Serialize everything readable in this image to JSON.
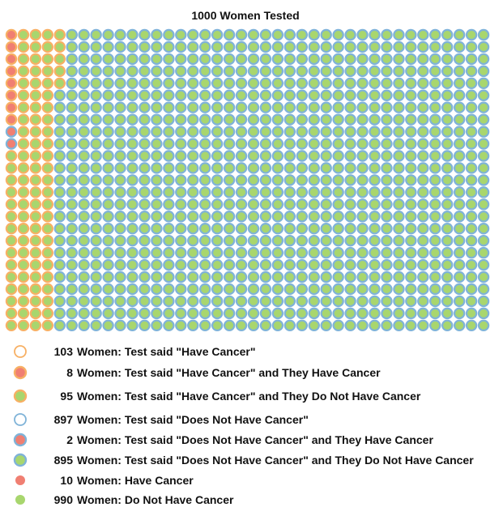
{
  "title": "1000 Women Tested",
  "chart_data": {
    "type": "pictograph",
    "title": "1000 Women Tested",
    "total": 1000,
    "grid": {
      "rows": 25,
      "cols": 40,
      "fill_order": "column-major"
    },
    "groups": [
      {
        "key": "tp",
        "label": "Test said \"Have Cancer\" and They Have Cancer",
        "count": 8,
        "ring": "#f7b064",
        "fill": "#f07f72"
      },
      {
        "key": "fn",
        "label": "Test said \"Does Not Have Cancer\" and They Have Cancer",
        "count": 2,
        "ring": "#7fb3d8",
        "fill": "#f07f72"
      },
      {
        "key": "fp",
        "label": "Test said \"Have Cancer\" and They Do Not Have Cancer",
        "count": 95,
        "ring": "#f7b064",
        "fill": "#a8d66e"
      },
      {
        "key": "tn",
        "label": "Test said \"Does Not Have Cancer\" and They Do Not Have Cancer",
        "count": 895,
        "ring": "#7fb3d8",
        "fill": "#a8d66e"
      }
    ]
  },
  "legend": [
    {
      "count": "103",
      "label": "Women: Test said \"Have Cancer\"",
      "icon": "ring",
      "ring": "#f7b064",
      "fill": ""
    },
    {
      "count": "8",
      "label": "Women: Test said \"Have Cancer\" and They Have Cancer",
      "icon": "ring-fill",
      "ring": "#f7b064",
      "fill": "#f07f72"
    },
    {
      "count": "95",
      "label": "Women: Test said \"Have Cancer\" and They Do Not Have Cancer",
      "icon": "ring-fill",
      "ring": "#f7b064",
      "fill": "#a8d66e"
    },
    {
      "count": "897",
      "label": "Women: Test said \"Does Not Have Cancer\"",
      "icon": "ring",
      "ring": "#7fb3d8",
      "fill": ""
    },
    {
      "count": "2",
      "label": "Women: Test said \"Does Not Have Cancer\" and They Have Cancer",
      "icon": "ring-fill",
      "ring": "#7fb3d8",
      "fill": "#f07f72"
    },
    {
      "count": "895",
      "label": "Women: Test said \"Does Not Have Cancer\" and They Do Not Have Cancer",
      "icon": "ring-fill",
      "ring": "#7fb3d8",
      "fill": "#a8d66e"
    },
    {
      "count": "10",
      "label": "Women: Have Cancer",
      "icon": "dot",
      "ring": "",
      "fill": "#f07f72"
    },
    {
      "count": "990",
      "label": "Women: Do Not Have Cancer",
      "icon": "dot",
      "ring": "",
      "fill": "#a8d66e"
    }
  ]
}
